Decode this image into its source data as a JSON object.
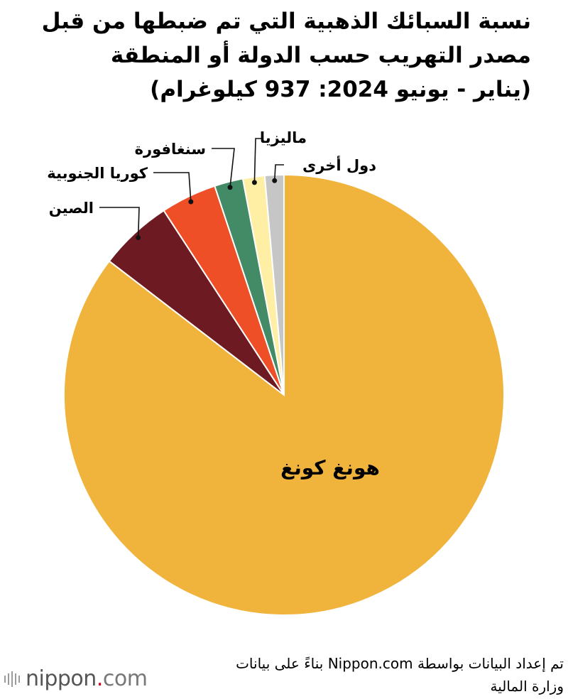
{
  "title": {
    "line1": "نسبة السبائك الذهبية التي تم ضبطها من قبل",
    "line2": "مصدر التهريب حسب الدولة أو المنطقة",
    "line3": "(يناير - يونيو 2024: 937 كيلوغرام)"
  },
  "chart_data": {
    "type": "pie",
    "title": "نسبة السبائك الذهبية التي تم ضبطها من قبل مصدر التهريب حسب الدولة أو المنطقة (يناير - يونيو 2024: 937 كيلوغرام)",
    "start": "12 o'clock",
    "direction": "clockwise",
    "slices": [
      {
        "label": "هونغ كونغ",
        "value": 85.4,
        "color": "#F0B33C",
        "label_placement": "inside"
      },
      {
        "label": "الصين",
        "value": 5.4,
        "color": "#6E1A22",
        "label_placement": "outside-left"
      },
      {
        "label": "كوريا الجنوبية",
        "value": 4.1,
        "color": "#EE4F27",
        "label_placement": "outside-left"
      },
      {
        "label": "سنغافورة",
        "value": 2.1,
        "color": "#438A66",
        "label_placement": "outside-top"
      },
      {
        "label": "ماليزيا",
        "value": 1.6,
        "color": "#FEEFA4",
        "label_placement": "outside-top"
      },
      {
        "label": "دول أخرى",
        "value": 1.4,
        "color": "#C6C6C6",
        "label_placement": "outside-top"
      }
    ]
  },
  "source": {
    "line1": "تم إعداد البيانات بواسطة Nippon.com بناءً على بيانات",
    "line2": "وزارة المالية"
  },
  "logo": {
    "name": "nippon",
    "dot": ".",
    "suffix": "com"
  }
}
